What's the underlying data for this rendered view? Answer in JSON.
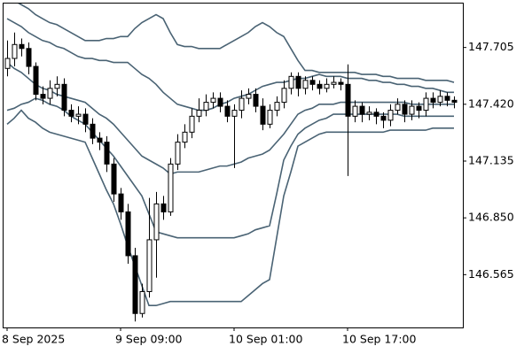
{
  "chart_data": {
    "type": "candlestick",
    "categories": [
      "8 Sep 2025",
      null,
      null,
      null,
      null,
      null,
      null,
      null,
      null,
      null,
      null,
      null,
      null,
      null,
      null,
      null,
      "9 Sep 09:00",
      null,
      null,
      null,
      null,
      null,
      null,
      null,
      null,
      null,
      null,
      null,
      null,
      null,
      null,
      null,
      "10 Sep 01:00",
      null,
      null,
      null,
      null,
      null,
      null,
      null,
      null,
      null,
      null,
      null,
      null,
      null,
      null,
      null,
      "10 Sep 17:00",
      null,
      null,
      null,
      null,
      null,
      null,
      null,
      null,
      null,
      null,
      null,
      null,
      null,
      null,
      null
    ],
    "open": [
      147.6,
      147.65,
      147.72,
      147.7,
      147.61,
      147.47,
      147.45,
      147.5,
      147.52,
      147.39,
      147.36,
      147.37,
      147.32,
      147.25,
      147.23,
      147.12,
      146.97,
      146.88,
      146.66,
      146.37,
      146.48,
      146.74,
      146.92,
      146.88,
      147.12,
      147.23,
      147.28,
      147.36,
      147.39,
      147.43,
      147.45,
      147.41,
      147.36,
      147.39,
      147.45,
      147.47,
      147.41,
      147.32,
      147.39,
      147.43,
      147.5,
      147.56,
      147.5,
      147.54,
      147.52,
      147.5,
      147.52,
      147.53,
      147.52,
      147.36,
      147.41,
      147.37,
      147.38,
      147.36,
      147.34,
      147.39,
      147.42,
      147.37,
      147.41,
      147.39,
      147.45,
      147.43,
      147.46,
      147.44
    ],
    "high": [
      147.74,
      147.78,
      147.75,
      147.73,
      147.63,
      147.51,
      147.54,
      147.56,
      147.55,
      147.42,
      147.41,
      147.4,
      147.35,
      147.28,
      147.26,
      147.15,
      147.0,
      146.92,
      146.7,
      146.52,
      146.95,
      146.98,
      146.96,
      147.15,
      147.27,
      147.32,
      147.4,
      147.45,
      147.47,
      147.48,
      147.48,
      147.44,
      147.42,
      147.49,
      147.5,
      147.5,
      147.45,
      147.42,
      147.46,
      147.54,
      147.58,
      147.58,
      147.56,
      147.56,
      147.54,
      147.55,
      147.56,
      147.55,
      147.62,
      147.44,
      147.43,
      147.41,
      147.4,
      147.38,
      147.42,
      147.45,
      147.44,
      147.44,
      147.43,
      147.48,
      147.48,
      147.49,
      147.48,
      147.46
    ],
    "low": [
      147.56,
      147.61,
      147.66,
      147.57,
      147.44,
      147.42,
      147.42,
      147.46,
      147.36,
      147.33,
      147.32,
      147.28,
      147.22,
      147.19,
      147.08,
      146.93,
      146.84,
      146.62,
      146.33,
      146.35,
      146.45,
      146.55,
      146.84,
      146.86,
      147.09,
      147.2,
      147.25,
      147.33,
      147.36,
      147.4,
      147.38,
      147.33,
      147.1,
      147.35,
      147.42,
      147.38,
      147.29,
      147.3,
      147.36,
      147.4,
      147.47,
      147.46,
      147.47,
      147.49,
      147.47,
      147.48,
      147.5,
      147.49,
      147.06,
      147.33,
      147.33,
      147.34,
      147.32,
      147.3,
      147.31,
      147.37,
      147.33,
      147.34,
      147.35,
      147.36,
      147.4,
      147.41,
      147.41,
      147.4
    ],
    "close": [
      147.65,
      147.72,
      147.7,
      147.61,
      147.47,
      147.45,
      147.5,
      147.52,
      147.39,
      147.36,
      147.37,
      147.32,
      147.25,
      147.23,
      147.12,
      146.97,
      146.88,
      146.66,
      146.37,
      146.48,
      146.74,
      146.92,
      146.88,
      147.12,
      147.23,
      147.28,
      147.36,
      147.39,
      147.43,
      147.45,
      147.41,
      147.36,
      147.39,
      147.45,
      147.47,
      147.41,
      147.32,
      147.39,
      147.43,
      147.5,
      147.56,
      147.5,
      147.54,
      147.52,
      147.5,
      147.52,
      147.53,
      147.52,
      147.36,
      147.41,
      147.37,
      147.38,
      147.36,
      147.34,
      147.39,
      147.42,
      147.37,
      147.41,
      147.39,
      147.45,
      147.43,
      147.46,
      147.44,
      147.43
    ],
    "up_color": "#ffffff",
    "down_color": "#000000",
    "lines": [
      {
        "color": "#4a6374",
        "values": [
          147.96,
          147.94,
          147.92,
          147.9,
          147.87,
          147.85,
          147.83,
          147.82,
          147.8,
          147.78,
          147.76,
          147.74,
          147.74,
          147.74,
          147.75,
          147.75,
          147.76,
          147.76,
          147.8,
          147.83,
          147.85,
          147.87,
          147.85,
          147.78,
          147.72,
          147.71,
          147.71,
          147.7,
          147.7,
          147.7,
          147.7,
          147.72,
          147.74,
          147.76,
          147.78,
          147.81,
          147.83,
          147.81,
          147.78,
          147.76,
          147.7,
          147.64,
          147.59,
          147.59,
          147.58,
          147.58,
          147.58,
          147.58,
          147.58,
          147.58,
          147.57,
          147.57,
          147.57,
          147.56,
          147.56,
          147.55,
          147.55,
          147.55,
          147.55,
          147.54,
          147.54,
          147.54,
          147.54,
          147.53
        ]
      },
      {
        "color": "#4a6374",
        "values": [
          147.85,
          147.83,
          147.81,
          147.78,
          147.76,
          147.74,
          147.73,
          147.71,
          147.7,
          147.68,
          147.66,
          147.65,
          147.65,
          147.64,
          147.64,
          147.63,
          147.63,
          147.63,
          147.6,
          147.57,
          147.55,
          147.52,
          147.48,
          147.45,
          147.42,
          147.41,
          147.4,
          147.39,
          147.39,
          147.4,
          147.42,
          147.43,
          147.45,
          147.46,
          147.47,
          147.49,
          147.51,
          147.52,
          147.53,
          147.53,
          147.54,
          147.55,
          147.55,
          147.56,
          147.57,
          147.56,
          147.56,
          147.56,
          147.55,
          147.55,
          147.55,
          147.54,
          147.54,
          147.53,
          147.53,
          147.52,
          147.52,
          147.51,
          147.51,
          147.5,
          147.5,
          147.49,
          147.48,
          147.48
        ]
      },
      {
        "color": "#4a6374",
        "values": [
          147.63,
          147.6,
          147.58,
          147.55,
          147.52,
          147.5,
          147.49,
          147.47,
          147.46,
          147.45,
          147.44,
          147.43,
          147.4,
          147.37,
          147.35,
          147.32,
          147.28,
          147.24,
          147.2,
          147.16,
          147.14,
          147.12,
          147.1,
          147.07,
          147.08,
          147.08,
          147.08,
          147.08,
          147.09,
          147.1,
          147.11,
          147.11,
          147.12,
          147.13,
          147.15,
          147.16,
          147.17,
          147.19,
          147.23,
          147.27,
          147.32,
          147.37,
          147.39,
          147.4,
          147.42,
          147.42,
          147.42,
          147.43,
          147.43,
          147.43,
          147.43,
          147.43,
          147.43,
          147.43,
          147.43,
          147.43,
          147.43,
          147.42,
          147.42,
          147.42,
          147.42,
          147.42,
          147.42,
          147.42
        ]
      },
      {
        "color": "#4a6374",
        "values": [
          147.39,
          147.4,
          147.42,
          147.43,
          147.45,
          147.44,
          147.42,
          147.41,
          147.39,
          147.36,
          147.34,
          147.32,
          147.28,
          147.24,
          147.2,
          147.16,
          147.11,
          147.06,
          147.01,
          146.96,
          146.87,
          146.78,
          146.77,
          146.76,
          146.75,
          146.75,
          146.75,
          146.75,
          146.75,
          146.75,
          146.75,
          146.75,
          146.75,
          146.76,
          146.77,
          146.79,
          146.8,
          146.81,
          146.97,
          147.14,
          147.21,
          147.27,
          147.3,
          147.32,
          147.34,
          147.35,
          147.37,
          147.37,
          147.37,
          147.37,
          147.37,
          147.37,
          147.37,
          147.37,
          147.37,
          147.37,
          147.36,
          147.36,
          147.36,
          147.36,
          147.36,
          147.36,
          147.36,
          147.36
        ]
      },
      {
        "color": "#4a6374",
        "values": [
          147.32,
          147.35,
          147.39,
          147.35,
          147.33,
          147.3,
          147.28,
          147.27,
          147.26,
          147.25,
          147.24,
          147.23,
          147.15,
          147.07,
          146.99,
          146.92,
          146.82,
          146.71,
          146.61,
          146.51,
          146.41,
          146.41,
          146.42,
          146.43,
          146.43,
          146.43,
          146.43,
          146.43,
          146.43,
          146.43,
          146.43,
          146.43,
          146.43,
          146.43,
          146.46,
          146.49,
          146.52,
          146.54,
          146.75,
          146.96,
          147.08,
          147.21,
          147.23,
          147.25,
          147.27,
          147.28,
          147.28,
          147.28,
          147.28,
          147.28,
          147.28,
          147.28,
          147.28,
          147.28,
          147.29,
          147.29,
          147.29,
          147.29,
          147.29,
          147.29,
          147.3,
          147.3,
          147.3,
          147.3
        ]
      }
    ],
    "ylim": [
      146.3,
      147.93
    ],
    "yticks": [
      147.705,
      {
        "value": 147.42,
        "label": "147.420"
      },
      147.135,
      {
        "value": 146.85,
        "label": "146.850"
      },
      146.565
    ]
  }
}
